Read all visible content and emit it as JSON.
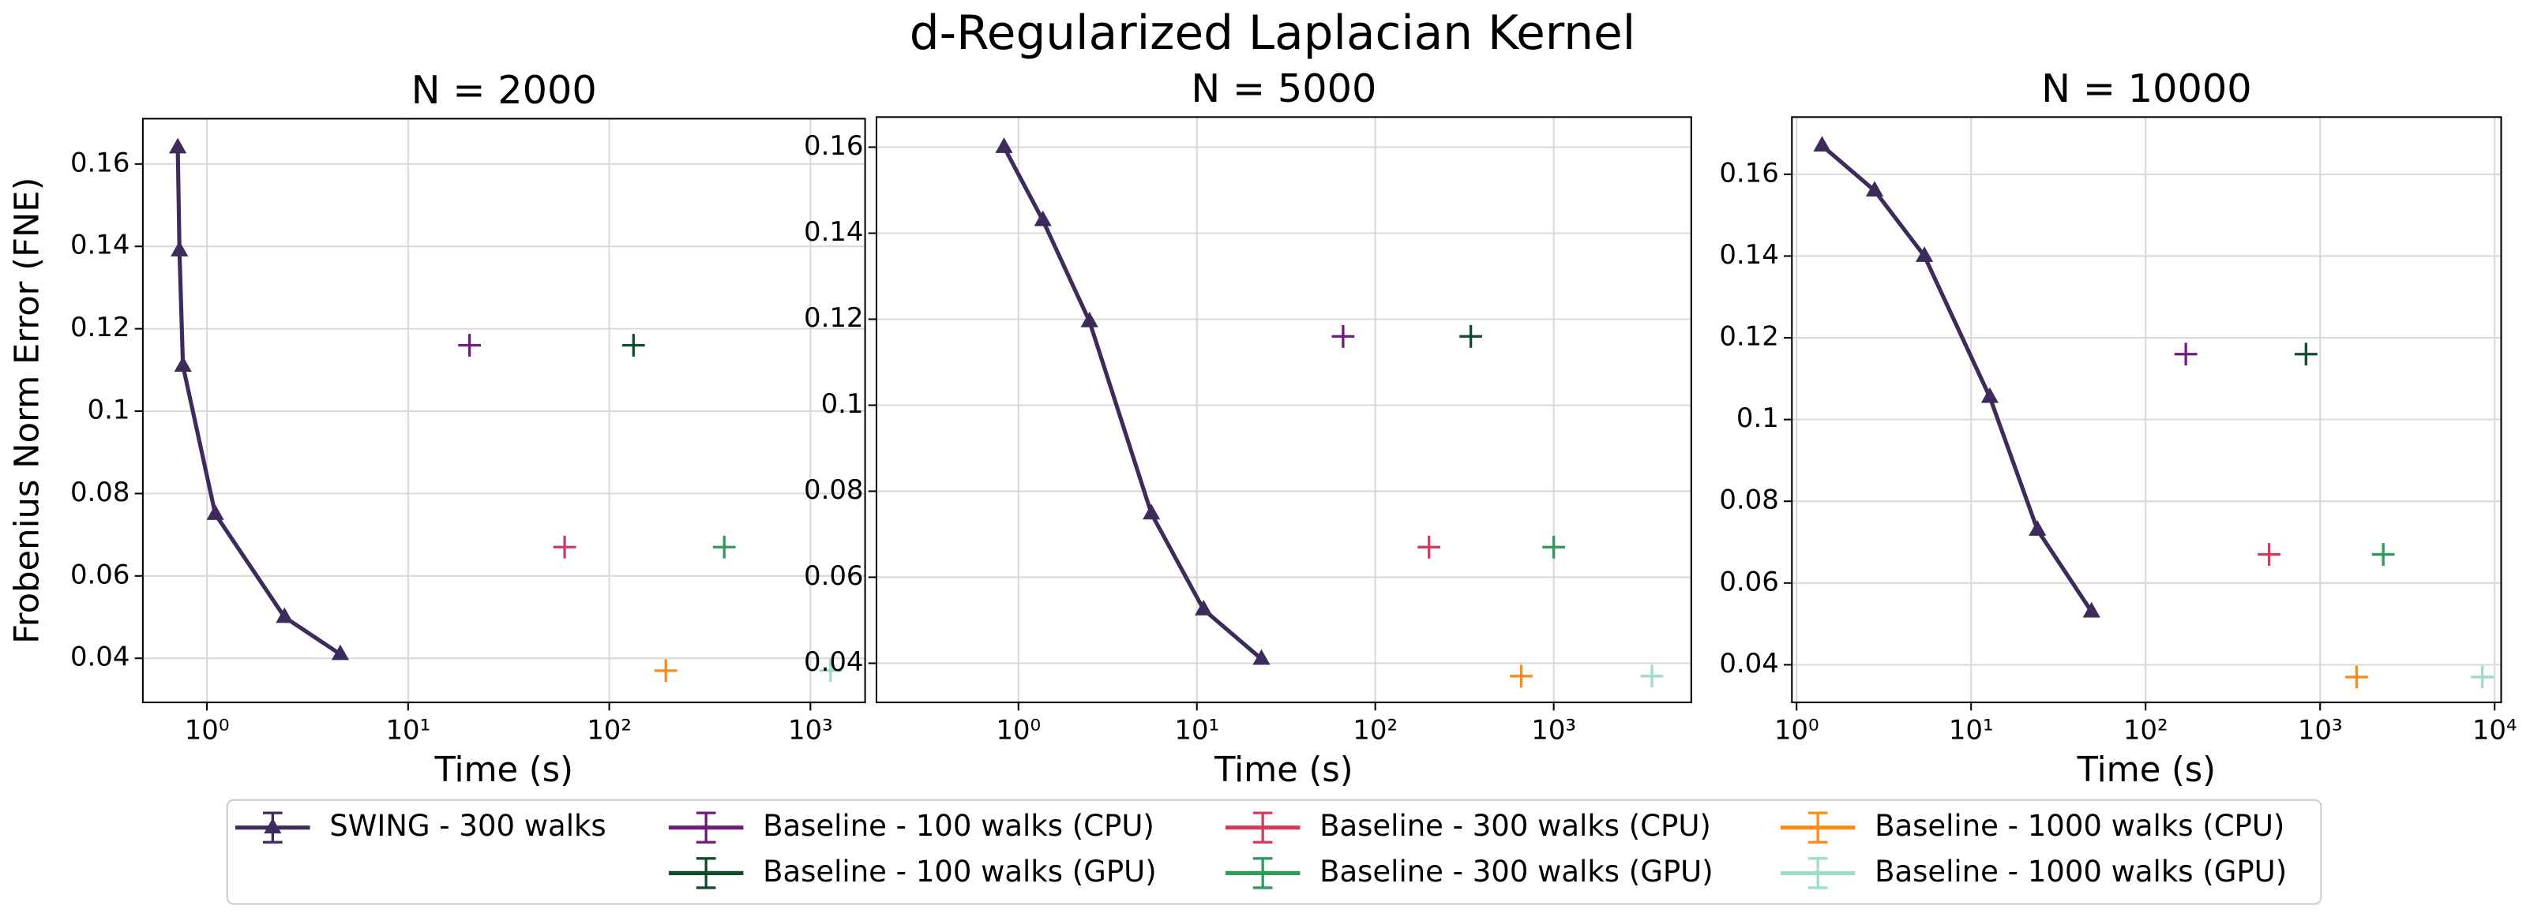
{
  "title": "d-Regularized Laplacian Kernel",
  "chart_data": [
    {
      "type": "line",
      "title": "N = 2000",
      "xlabel": "Time (s)",
      "ylabel": "Frobenius Norm Error (FNE)",
      "xscale": "log",
      "grid": true,
      "xlim": [
        0.48,
        1870
      ],
      "ylim": [
        0.0293,
        0.171
      ],
      "xticks": [
        {
          "value": 1,
          "label": "10⁰"
        },
        {
          "value": 10,
          "label": "10¹"
        },
        {
          "value": 100,
          "label": "10²"
        },
        {
          "value": 1000,
          "label": "10³"
        }
      ],
      "yticks": [
        0.04,
        0.06,
        0.08,
        0.1,
        0.12,
        0.14,
        0.16
      ],
      "series": [
        {
          "name": "SWING - 300 walks",
          "color": "#3d2b5c",
          "marker": "triangle",
          "x": [
            0.716,
            0.73,
            0.76,
            1.1,
            2.43,
            4.6
          ],
          "values": [
            0.164,
            0.139,
            0.111,
            0.075,
            0.05,
            0.041
          ]
        },
        {
          "name": "Baseline - 100 walks (CPU)",
          "color": "#6b1f7a",
          "marker": "plus",
          "x": [
            20.2
          ],
          "values": [
            0.116
          ]
        },
        {
          "name": "Baseline - 100 walks (GPU)",
          "color": "#124a2c",
          "marker": "plus",
          "x": [
            132
          ],
          "values": [
            0.116
          ]
        },
        {
          "name": "Baseline - 300 walks (CPU)",
          "color": "#d23c5c",
          "marker": "plus",
          "x": [
            60
          ],
          "values": [
            0.067
          ]
        },
        {
          "name": "Baseline - 300 walks (GPU)",
          "color": "#2f9a5c",
          "marker": "plus",
          "x": [
            373
          ],
          "values": [
            0.067
          ]
        },
        {
          "name": "Baseline - 1000 walks (CPU)",
          "color": "#f88c1c",
          "marker": "plus",
          "x": [
            191
          ],
          "values": [
            0.037
          ]
        },
        {
          "name": "Baseline - 1000 walks (GPU)",
          "color": "#9fdcc8",
          "marker": "plus",
          "x": [
            1260
          ],
          "values": [
            0.037
          ]
        }
      ]
    },
    {
      "type": "line",
      "title": "N = 5000",
      "xlabel": "Time (s)",
      "xscale": "log",
      "grid": true,
      "xlim": [
        0.16,
        5900
      ],
      "ylim": [
        0.0309,
        0.167
      ],
      "xticks": [
        {
          "value": 1,
          "label": "10⁰"
        },
        {
          "value": 10,
          "label": "10¹"
        },
        {
          "value": 100,
          "label": "10²"
        },
        {
          "value": 1000,
          "label": "10³"
        }
      ],
      "yticks": [
        0.04,
        0.06,
        0.08,
        0.1,
        0.12,
        0.14,
        0.16
      ],
      "series": [
        {
          "name": "SWING - 300 walks",
          "color": "#3d2b5c",
          "marker": "triangle",
          "x": [
            0.83,
            1.37,
            2.5,
            5.56,
            10.9,
            23
          ],
          "values": [
            0.16,
            0.143,
            0.1195,
            0.0748,
            0.0525,
            0.041
          ]
        },
        {
          "name": "Baseline - 100 walks (CPU)",
          "color": "#6b1f7a",
          "marker": "plus",
          "x": [
            66
          ],
          "values": [
            0.116
          ]
        },
        {
          "name": "Baseline - 100 walks (GPU)",
          "color": "#124a2c",
          "marker": "plus",
          "x": [
            343
          ],
          "values": [
            0.116
          ]
        },
        {
          "name": "Baseline - 300 walks (CPU)",
          "color": "#d23c5c",
          "marker": "plus",
          "x": [
            200
          ],
          "values": [
            0.067
          ]
        },
        {
          "name": "Baseline - 300 walks (GPU)",
          "color": "#2f9a5c",
          "marker": "plus",
          "x": [
            1000
          ],
          "values": [
            0.067
          ]
        },
        {
          "name": "Baseline - 1000 walks (CPU)",
          "color": "#f88c1c",
          "marker": "plus",
          "x": [
            658
          ],
          "values": [
            0.037
          ]
        },
        {
          "name": "Baseline - 1000 walks (GPU)",
          "color": "#9fdcc8",
          "marker": "plus",
          "x": [
            3550
          ],
          "values": [
            0.037
          ]
        }
      ]
    },
    {
      "type": "line",
      "title": "N = 10000",
      "xlabel": "Time (s)",
      "xscale": "log",
      "grid": true,
      "xlim": [
        0.94,
        10900
      ],
      "ylim": [
        0.0308,
        0.174
      ],
      "xticks": [
        {
          "value": 1,
          "label": "10⁰"
        },
        {
          "value": 10,
          "label": "10¹"
        },
        {
          "value": 100,
          "label": "10²"
        },
        {
          "value": 1000,
          "label": "10³"
        },
        {
          "value": 10000,
          "label": "10⁴"
        }
      ],
      "yticks": [
        0.04,
        0.06,
        0.08,
        0.1,
        0.12,
        0.14,
        0.16
      ],
      "series": [
        {
          "name": "SWING - 300 walks",
          "color": "#3d2b5c",
          "marker": "triangle",
          "x": [
            1.4,
            2.8,
            5.4,
            12.8,
            24,
            49
          ],
          "values": [
            0.167,
            0.156,
            0.14,
            0.1055,
            0.073,
            0.053
          ]
        },
        {
          "name": "Baseline - 100 walks (CPU)",
          "color": "#6b1f7a",
          "marker": "plus",
          "x": [
            170
          ],
          "values": [
            0.116
          ]
        },
        {
          "name": "Baseline - 100 walks (GPU)",
          "color": "#124a2c",
          "marker": "plus",
          "x": [
            830
          ],
          "values": [
            0.116
          ]
        },
        {
          "name": "Baseline - 300 walks (CPU)",
          "color": "#d23c5c",
          "marker": "plus",
          "x": [
            510
          ],
          "values": [
            0.067
          ]
        },
        {
          "name": "Baseline - 300 walks (GPU)",
          "color": "#2f9a5c",
          "marker": "plus",
          "x": [
            2300
          ],
          "values": [
            0.067
          ]
        },
        {
          "name": "Baseline - 1000 walks (CPU)",
          "color": "#f88c1c",
          "marker": "plus",
          "x": [
            1620
          ],
          "values": [
            0.037
          ]
        },
        {
          "name": "Baseline - 1000 walks (GPU)",
          "color": "#9fdcc8",
          "marker": "plus",
          "x": [
            8500
          ],
          "values": [
            0.037
          ]
        }
      ]
    }
  ]
}
